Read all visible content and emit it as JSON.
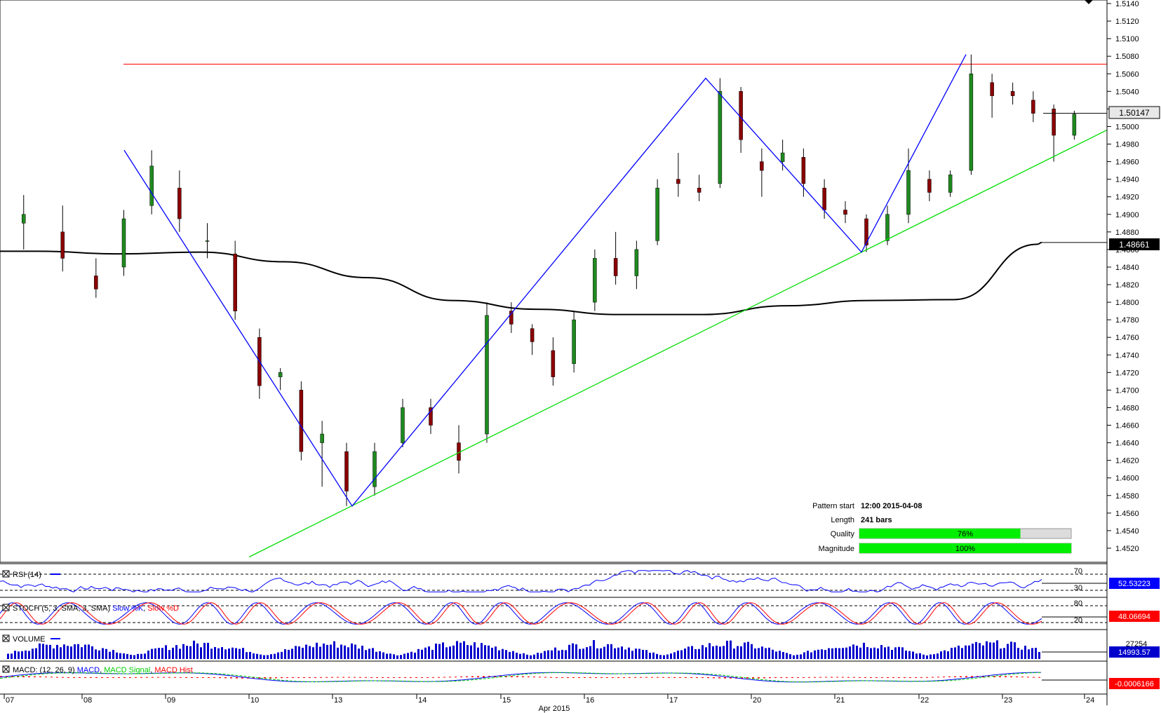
{
  "chart_data": {
    "type": "candlestick",
    "price_axis": {
      "ylim": [
        1.4504,
        1.5144
      ],
      "ticks": [
        "1.5140",
        "1.5120",
        "1.5100",
        "1.5080",
        "1.5060",
        "1.5040",
        "1.5020",
        "1.5000",
        "1.4980",
        "1.4960",
        "1.4940",
        "1.4920",
        "1.4900",
        "1.4880",
        "1.4860",
        "1.4840",
        "1.4820",
        "1.4800",
        "1.4780",
        "1.4760",
        "1.4740",
        "1.4720",
        "1.4700",
        "1.4680",
        "1.4660",
        "1.4640",
        "1.4620",
        "1.4600",
        "1.4580",
        "1.4560",
        "1.4540",
        "1.4520"
      ],
      "current_price_label": "1.50147",
      "ma_price_label": "1.48661"
    },
    "x_axis": {
      "day_labels": [
        "07",
        "08",
        "09",
        "10",
        "13",
        "14",
        "15",
        "16",
        "17",
        "20",
        "21",
        "22",
        "23",
        "24"
      ],
      "month_label": "Apr 2015"
    },
    "pattern": {
      "resistance_level": 1.5071,
      "support_line": {
        "from": [
          "10",
          "1.4510"
        ],
        "to": [
          "24",
          "1.4996"
        ]
      },
      "zigzag_points": [
        {
          "day": "08",
          "price": 1.4973
        },
        {
          "day": "13",
          "price": 1.4568
        },
        {
          "day": "17",
          "price": 1.5055
        },
        {
          "day": "21",
          "price": 1.4857
        },
        {
          "day": "22",
          "price": 1.5082
        }
      ]
    },
    "candles_approx": [
      {
        "day": "07",
        "o": 1.489,
        "h": 1.4922,
        "l": 1.486,
        "c": 1.49
      },
      {
        "day": "07",
        "o": 1.488,
        "h": 1.491,
        "l": 1.4835,
        "c": 1.485
      },
      {
        "day": "08",
        "o": 1.483,
        "h": 1.485,
        "l": 1.4805,
        "c": 1.4815
      },
      {
        "day": "08",
        "o": 1.484,
        "h": 1.4905,
        "l": 1.483,
        "c": 1.4895
      },
      {
        "day": "08",
        "o": 1.491,
        "h": 1.4973,
        "l": 1.49,
        "c": 1.4955
      },
      {
        "day": "09",
        "o": 1.493,
        "h": 1.495,
        "l": 1.488,
        "c": 1.4895
      },
      {
        "day": "09",
        "o": 1.487,
        "h": 1.489,
        "l": 1.485,
        "c": 1.487
      },
      {
        "day": "09",
        "o": 1.4855,
        "h": 1.487,
        "l": 1.478,
        "c": 1.479
      },
      {
        "day": "10",
        "o": 1.476,
        "h": 1.477,
        "l": 1.469,
        "c": 1.4705
      },
      {
        "day": "10",
        "o": 1.4715,
        "h": 1.4725,
        "l": 1.47,
        "c": 1.472
      },
      {
        "day": "10",
        "o": 1.47,
        "h": 1.471,
        "l": 1.462,
        "c": 1.463
      },
      {
        "day": "10",
        "o": 1.464,
        "h": 1.4665,
        "l": 1.459,
        "c": 1.465
      },
      {
        "day": "13",
        "o": 1.463,
        "h": 1.464,
        "l": 1.4568,
        "c": 1.4585
      },
      {
        "day": "13",
        "o": 1.459,
        "h": 1.464,
        "l": 1.458,
        "c": 1.463
      },
      {
        "day": "13",
        "o": 1.464,
        "h": 1.469,
        "l": 1.4635,
        "c": 1.468
      },
      {
        "day": "14",
        "o": 1.468,
        "h": 1.469,
        "l": 1.465,
        "c": 1.466
      },
      {
        "day": "14",
        "o": 1.464,
        "h": 1.466,
        "l": 1.4605,
        "c": 1.462
      },
      {
        "day": "14",
        "o": 1.465,
        "h": 1.48,
        "l": 1.464,
        "c": 1.4785
      },
      {
        "day": "15",
        "o": 1.479,
        "h": 1.48,
        "l": 1.4765,
        "c": 1.4775
      },
      {
        "day": "15",
        "o": 1.477,
        "h": 1.4775,
        "l": 1.474,
        "c": 1.4755
      },
      {
        "day": "15",
        "o": 1.4745,
        "h": 1.476,
        "l": 1.4705,
        "c": 1.4715
      },
      {
        "day": "15",
        "o": 1.473,
        "h": 1.479,
        "l": 1.472,
        "c": 1.478
      },
      {
        "day": "16",
        "o": 1.48,
        "h": 1.486,
        "l": 1.479,
        "c": 1.485
      },
      {
        "day": "16",
        "o": 1.485,
        "h": 1.488,
        "l": 1.482,
        "c": 1.483
      },
      {
        "day": "16",
        "o": 1.483,
        "h": 1.487,
        "l": 1.4815,
        "c": 1.486
      },
      {
        "day": "16",
        "o": 1.487,
        "h": 1.494,
        "l": 1.4865,
        "c": 1.493
      },
      {
        "day": "17",
        "o": 1.494,
        "h": 1.497,
        "l": 1.492,
        "c": 1.4935
      },
      {
        "day": "17",
        "o": 1.493,
        "h": 1.4945,
        "l": 1.4915,
        "c": 1.4925
      },
      {
        "day": "17",
        "o": 1.4935,
        "h": 1.5055,
        "l": 1.493,
        "c": 1.504
      },
      {
        "day": "17",
        "o": 1.504,
        "h": 1.5045,
        "l": 1.497,
        "c": 1.4985
      },
      {
        "day": "20",
        "o": 1.496,
        "h": 1.4975,
        "l": 1.492,
        "c": 1.495
      },
      {
        "day": "20",
        "o": 1.496,
        "h": 1.4985,
        "l": 1.495,
        "c": 1.497
      },
      {
        "day": "20",
        "o": 1.4965,
        "h": 1.4975,
        "l": 1.492,
        "c": 1.4935
      },
      {
        "day": "20",
        "o": 1.493,
        "h": 1.494,
        "l": 1.4895,
        "c": 1.4905
      },
      {
        "day": "21",
        "o": 1.4905,
        "h": 1.4915,
        "l": 1.489,
        "c": 1.49
      },
      {
        "day": "21",
        "o": 1.4895,
        "h": 1.49,
        "l": 1.4857,
        "c": 1.4865
      },
      {
        "day": "21",
        "o": 1.487,
        "h": 1.491,
        "l": 1.4865,
        "c": 1.49
      },
      {
        "day": "21",
        "o": 1.49,
        "h": 1.4975,
        "l": 1.489,
        "c": 1.495
      },
      {
        "day": "22",
        "o": 1.494,
        "h": 1.495,
        "l": 1.4915,
        "c": 1.4925
      },
      {
        "day": "22",
        "o": 1.4925,
        "h": 1.495,
        "l": 1.492,
        "c": 1.4945
      },
      {
        "day": "22",
        "o": 1.495,
        "h": 1.5082,
        "l": 1.4945,
        "c": 1.506
      },
      {
        "day": "22",
        "o": 1.505,
        "h": 1.506,
        "l": 1.501,
        "c": 1.5035
      },
      {
        "day": "23",
        "o": 1.504,
        "h": 1.505,
        "l": 1.5025,
        "c": 1.5035
      },
      {
        "day": "23",
        "o": 1.503,
        "h": 1.504,
        "l": 1.5005,
        "c": 1.5015
      },
      {
        "day": "23",
        "o": 1.502,
        "h": 1.5025,
        "l": 1.496,
        "c": 1.499
      },
      {
        "day": "23",
        "o": 1.499,
        "h": 1.5018,
        "l": 1.4985,
        "c": 1.5014
      }
    ],
    "moving_average": [
      {
        "day": "07",
        "v": 1.4858
      },
      {
        "day": "08",
        "v": 1.4855
      },
      {
        "day": "09",
        "v": 1.4857
      },
      {
        "day": "10",
        "v": 1.4846
      },
      {
        "day": "13",
        "v": 1.4828
      },
      {
        "day": "14",
        "v": 1.4802
      },
      {
        "day": "15",
        "v": 1.4792
      },
      {
        "day": "16",
        "v": 1.4786
      },
      {
        "day": "17",
        "v": 1.4786
      },
      {
        "day": "20",
        "v": 1.4796
      },
      {
        "day": "21",
        "v": 1.4802
      },
      {
        "day": "22",
        "v": 1.4803
      },
      {
        "day": "23",
        "v": 1.4866
      }
    ]
  },
  "pattern_info": {
    "pattern_start_label": "Pattern start",
    "pattern_start_value": "12:00 2015-04-08",
    "length_label": "Length",
    "length_value": "241 bars",
    "quality_label": "Quality",
    "quality_value": "76%",
    "quality_fraction": 0.76,
    "magnitude_label": "Magnitude",
    "magnitude_value": "100%",
    "magnitude_fraction": 1.0
  },
  "indicators": {
    "rsi": {
      "title": "RSI (14)",
      "levels": [
        "70",
        "30"
      ],
      "value": "52.53223"
    },
    "stoch": {
      "title_prefix": "STOCH (5, 3, SMA, 3, SMA) ",
      "k_label": "Slow %K",
      "sep": ", ",
      "d_label": "Slow %D",
      "title_suffix": "",
      "levels": [
        "80",
        "20"
      ],
      "value": "48.06694"
    },
    "volume": {
      "title": "VOLUME",
      "scale": "27254",
      "value": "14993.57"
    },
    "macd": {
      "title_prefix": "MACD: (12, 26, 9) ",
      "macd_label": "MACD",
      "signal_label": "MACD Signal",
      "hist_label": "MACD Hist",
      "value": "-0.0006166"
    }
  },
  "colors": {
    "bull": "#1f8a1f",
    "bear": "#8b0000",
    "zigzag": "#0000ff",
    "support": "#00dd00",
    "resistance": "#ff0000",
    "ma": "#000000",
    "rsi_line": "#0000ff",
    "stoch_k": "#0000ff",
    "stoch_d": "#ff0000",
    "volume": "#0000cc",
    "macd": "#0000ff",
    "macd_signal": "#00cc00",
    "macd_hist": "#ff0000",
    "quality_bar": "#00ee00"
  }
}
